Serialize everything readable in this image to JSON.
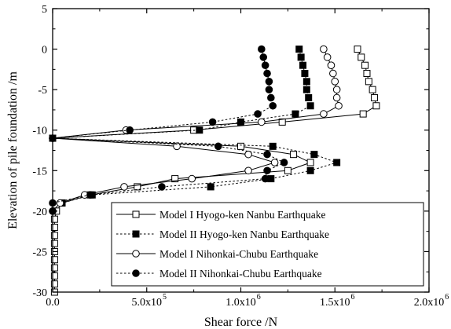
{
  "chart_data": {
    "type": "line",
    "title": "",
    "xlabel": "Shear force /N",
    "ylabel": "Elevation of pile foundation /m",
    "xlim": [
      0,
      2000000
    ],
    "ylim": [
      -30,
      5
    ],
    "grid": false,
    "legend_position": "bottom-right",
    "x_ticks": [
      {
        "value": 0,
        "mantissa": "0.0",
        "exponent": ""
      },
      {
        "value": 500000,
        "mantissa": "5.0x10",
        "exponent": "5"
      },
      {
        "value": 1000000,
        "mantissa": "1.0x10",
        "exponent": "6"
      },
      {
        "value": 1500000,
        "mantissa": "1.5x10",
        "exponent": "6"
      },
      {
        "value": 2000000,
        "mantissa": "2.0x10",
        "exponent": "6"
      }
    ],
    "y_ticks": [
      "5",
      "0",
      "-5",
      "-10",
      "-15",
      "-20",
      "-25",
      "-30"
    ],
    "series": [
      {
        "name": "Model I Hyogo-ken Nanbu Earthquake",
        "line": "solid",
        "marker": "square-open",
        "points": [
          [
            1620000,
            0
          ],
          [
            1640000,
            -1
          ],
          [
            1660000,
            -2
          ],
          [
            1670000,
            -3
          ],
          [
            1680000,
            -4
          ],
          [
            1700000,
            -5
          ],
          [
            1710000,
            -6
          ],
          [
            1720000,
            -7
          ],
          [
            1650000,
            -8
          ],
          [
            1220000,
            -9
          ],
          [
            750000,
            -10
          ],
          [
            0,
            -11
          ],
          [
            1000000,
            -12
          ],
          [
            1280000,
            -13
          ],
          [
            1370000,
            -14
          ],
          [
            1250000,
            -15
          ],
          [
            650000,
            -16
          ],
          [
            450000,
            -17
          ],
          [
            200000,
            -18
          ],
          [
            50000,
            -19
          ],
          [
            20000,
            -20
          ],
          [
            10000,
            -21
          ],
          [
            10000,
            -22
          ],
          [
            10000,
            -23
          ],
          [
            10000,
            -24
          ],
          [
            10000,
            -25
          ],
          [
            10000,
            -26
          ],
          [
            10000,
            -27
          ],
          [
            10000,
            -28
          ],
          [
            10000,
            -29
          ],
          [
            10000,
            -30
          ]
        ]
      },
      {
        "name": "Model II Hyogo-ken Nanbu Earthquake",
        "line": "dotted",
        "marker": "square-filled",
        "points": [
          [
            1310000,
            0
          ],
          [
            1320000,
            -1
          ],
          [
            1330000,
            -2
          ],
          [
            1340000,
            -3
          ],
          [
            1350000,
            -4
          ],
          [
            1350000,
            -5
          ],
          [
            1360000,
            -6
          ],
          [
            1370000,
            -7
          ],
          [
            1290000,
            -8
          ],
          [
            1000000,
            -9
          ],
          [
            780000,
            -10
          ],
          [
            0,
            -11
          ],
          [
            1170000,
            -12
          ],
          [
            1390000,
            -13
          ],
          [
            1510000,
            -14
          ],
          [
            1370000,
            -15
          ],
          [
            1160000,
            -16
          ],
          [
            840000,
            -17
          ],
          [
            210000,
            -18
          ],
          [
            50000,
            -19
          ]
        ]
      },
      {
        "name": "Model I Nihonkai-Chubu Earthquake",
        "line": "solid",
        "marker": "circle-open",
        "points": [
          [
            1440000,
            0
          ],
          [
            1460000,
            -1
          ],
          [
            1480000,
            -2
          ],
          [
            1490000,
            -3
          ],
          [
            1500000,
            -4
          ],
          [
            1510000,
            -5
          ],
          [
            1510000,
            -6
          ],
          [
            1520000,
            -7
          ],
          [
            1440000,
            -8
          ],
          [
            1110000,
            -9
          ],
          [
            390000,
            -10
          ],
          [
            0,
            -11
          ],
          [
            660000,
            -12
          ],
          [
            1040000,
            -13
          ],
          [
            1180000,
            -14
          ],
          [
            1040000,
            -15
          ],
          [
            740000,
            -16
          ],
          [
            380000,
            -17
          ],
          [
            170000,
            -18
          ],
          [
            40000,
            -19
          ],
          [
            0,
            -20
          ]
        ]
      },
      {
        "name": "Model II Nihonkai-Chubu Earthquake",
        "line": "dotted",
        "marker": "circle-filled",
        "points": [
          [
            1110000,
            0
          ],
          [
            1120000,
            -1
          ],
          [
            1130000,
            -2
          ],
          [
            1140000,
            -3
          ],
          [
            1150000,
            -4
          ],
          [
            1150000,
            -5
          ],
          [
            1160000,
            -6
          ],
          [
            1170000,
            -7
          ],
          [
            1090000,
            -8
          ],
          [
            850000,
            -9
          ],
          [
            410000,
            -10
          ],
          [
            0,
            -11
          ],
          [
            880000,
            -12
          ],
          [
            1140000,
            -13
          ],
          [
            1230000,
            -14
          ],
          [
            1140000,
            -15
          ],
          [
            1130000,
            -16
          ],
          [
            580000,
            -17
          ],
          [
            200000,
            -18
          ],
          [
            0,
            -19
          ],
          [
            0,
            -20
          ]
        ]
      }
    ]
  }
}
